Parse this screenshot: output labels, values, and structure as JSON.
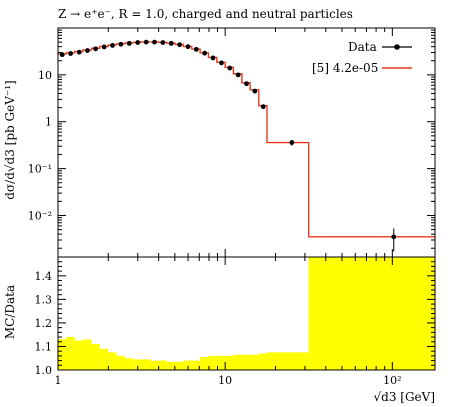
{
  "title": "Z → e⁺e⁻, R = 1.0, charged and neutral particles",
  "colors": {
    "mc": "#e8391f",
    "data": "#000000",
    "ratio_band": "#ffff00"
  },
  "chart_data": [
    {
      "type": "line",
      "title": "Z → e⁺e⁻, R = 1.0, charged and neutral particles",
      "xlabel": "",
      "ylabel": "dσ/d√d3 [pb GeV⁻¹]",
      "xscale": "log",
      "yscale": "log",
      "xlim": [
        1,
        180
      ],
      "ylim": [
        0.0013,
        100
      ],
      "xticks": [
        1,
        10,
        100
      ],
      "xtick_labels": [
        "1",
        "10",
        "10²"
      ],
      "yticks": [
        0.01,
        0.1,
        1,
        10
      ],
      "ytick_labels": [
        "10⁻²",
        "10⁻¹",
        "1",
        "10"
      ],
      "legend_position": "top-right",
      "legend": [
        "Data",
        "[5] 4.2e-05"
      ],
      "series": [
        {
          "name": "Data",
          "style": "points",
          "x": [
            1.06,
            1.19,
            1.34,
            1.5,
            1.68,
            1.89,
            2.12,
            2.38,
            2.67,
            3.0,
            3.37,
            3.78,
            4.24,
            4.76,
            5.34,
            5.99,
            6.72,
            7.54,
            8.46,
            9.5,
            10.66,
            11.96,
            13.42,
            15.06,
            16.9,
            25.06,
            102.0
          ],
          "y": [
            27,
            28.5,
            30.5,
            33,
            36,
            39.5,
            42.5,
            45,
            47,
            49,
            50,
            50,
            49,
            47,
            44,
            40,
            35,
            29,
            23,
            18,
            14,
            10,
            6.5,
            4.5,
            2.1,
            0.36,
            0.0035
          ],
          "yerr": [
            0,
            0,
            0,
            0,
            0,
            0,
            0,
            0,
            0,
            0,
            0,
            0,
            0,
            0,
            0,
            0,
            0,
            0,
            0,
            0,
            0,
            0,
            0,
            0,
            0,
            0.05,
            0.0018
          ]
        },
        {
          "name": "[5] 4.2e-05",
          "style": "step",
          "edges": [
            1,
            1.12,
            1.26,
            1.41,
            1.59,
            1.78,
            2.0,
            2.24,
            2.51,
            2.82,
            3.16,
            3.55,
            3.98,
            4.47,
            5.01,
            5.62,
            6.31,
            7.08,
            7.94,
            8.91,
            10.0,
            11.2,
            12.6,
            14.1,
            15.9,
            17.8,
            31.6,
            180
          ],
          "y": [
            28,
            29.5,
            31.5,
            34,
            37,
            40.5,
            43.5,
            46,
            48,
            49.5,
            50.5,
            50.5,
            49.5,
            47.5,
            44.5,
            40.5,
            35.5,
            29.5,
            23.5,
            18.5,
            14.5,
            10.5,
            6.8,
            4.8,
            2.2,
            0.36,
            0.0035
          ]
        }
      ]
    },
    {
      "type": "area",
      "title": "",
      "xlabel": "√d3 [GeV]",
      "ylabel": "MC/Data",
      "xscale": "log",
      "xlim": [
        1,
        180
      ],
      "ylim": [
        1.0,
        1.48
      ],
      "xticks": [
        1,
        10,
        100
      ],
      "xtick_labels": [
        "1",
        "10",
        "10²"
      ],
      "yticks": [
        1.0,
        1.1,
        1.2,
        1.3,
        1.4
      ],
      "ytick_labels": [
        "1.0",
        "1.1",
        "1.2",
        "1.3",
        "1.4"
      ],
      "series": [
        {
          "name": "",
          "style": "band",
          "edges": [
            1,
            1.12,
            1.26,
            1.41,
            1.59,
            1.78,
            2.0,
            2.24,
            2.51,
            2.82,
            3.16,
            3.55,
            3.98,
            4.47,
            5.01,
            5.62,
            6.31,
            7.08,
            7.94,
            8.91,
            10.0,
            11.2,
            12.6,
            14.1,
            15.9,
            17.8,
            31.6,
            180
          ],
          "values": [
            1.13,
            1.14,
            1.125,
            1.13,
            1.11,
            1.09,
            1.075,
            1.06,
            1.05,
            1.045,
            1.045,
            1.04,
            1.04,
            1.035,
            1.035,
            1.04,
            1.04,
            1.055,
            1.06,
            1.06,
            1.06,
            1.065,
            1.065,
            1.065,
            1.07,
            1.075,
            1.48
          ]
        }
      ]
    }
  ]
}
